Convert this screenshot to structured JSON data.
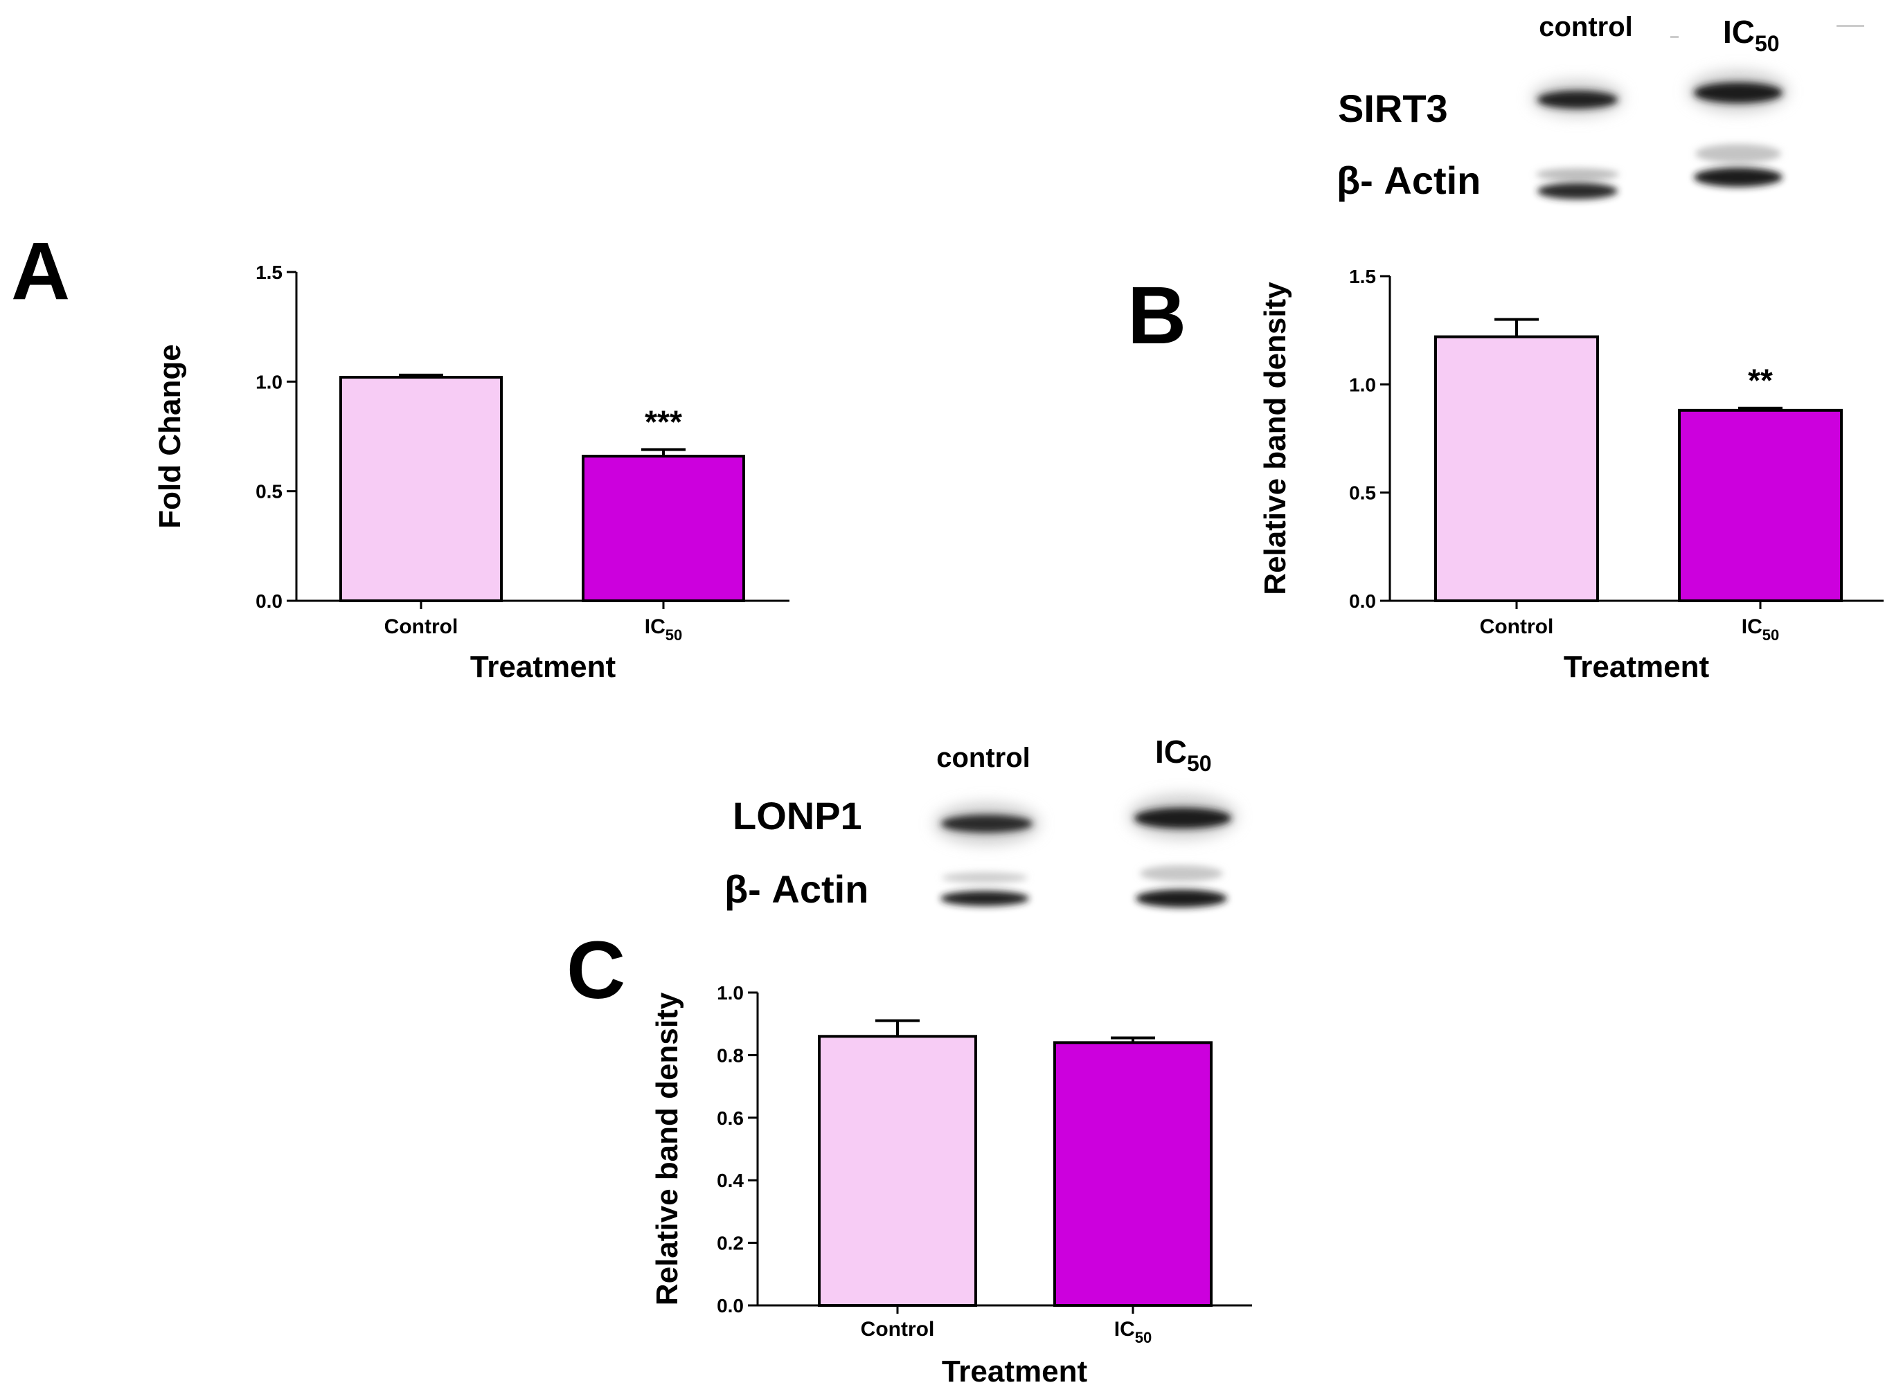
{
  "chart_data": [
    {
      "panel": "A",
      "type": "bar",
      "categories": [
        "Control",
        "IC"
      ],
      "category_subscripts": [
        "",
        "50"
      ],
      "values": [
        1.02,
        0.66
      ],
      "errors": [
        0.01,
        0.03
      ],
      "significance": [
        "",
        "***"
      ],
      "colors": [
        "#f7ccf5",
        "#cc00dd"
      ],
      "xlabel": "Treatment",
      "ylabel": "Fold Change",
      "ylim": [
        0,
        1.5
      ],
      "yticks": [
        0.0,
        0.5,
        1.0,
        1.5
      ],
      "ytick_labels": [
        "0.0",
        "0.5",
        "1.0",
        "1.5"
      ]
    },
    {
      "panel": "B",
      "type": "bar",
      "categories": [
        "Control",
        "IC"
      ],
      "category_subscripts": [
        "",
        "50"
      ],
      "values": [
        1.22,
        0.88
      ],
      "errors": [
        0.08,
        0.01
      ],
      "significance": [
        "",
        "**"
      ],
      "colors": [
        "#f7ccf5",
        "#cc00dd"
      ],
      "xlabel": "Treatment",
      "ylabel": "Relative band density",
      "ylim": [
        0,
        1.5
      ],
      "yticks": [
        0.0,
        0.5,
        1.0,
        1.5
      ],
      "ytick_labels": [
        "0.0",
        "0.5",
        "1.0",
        "1.5"
      ]
    },
    {
      "panel": "C",
      "type": "bar",
      "categories": [
        "Control",
        "IC"
      ],
      "category_subscripts": [
        "",
        "50"
      ],
      "values": [
        0.86,
        0.84
      ],
      "errors": [
        0.05,
        0.015
      ],
      "significance": [
        "",
        ""
      ],
      "colors": [
        "#f7ccf5",
        "#cc00dd"
      ],
      "xlabel": "Treatment",
      "ylabel": "Relative band density",
      "ylim": [
        0,
        1.0
      ],
      "yticks": [
        0.0,
        0.2,
        0.4,
        0.6,
        0.8,
        1.0
      ],
      "ytick_labels": [
        "0.0",
        "0.2",
        "0.4",
        "0.6",
        "0.8",
        "1.0"
      ]
    }
  ],
  "blots": [
    {
      "panel": "B",
      "lanes": [
        "control",
        "IC"
      ],
      "lane_subscripts": [
        "",
        "50"
      ],
      "proteins": [
        "SIRT3",
        "β- Actin"
      ]
    },
    {
      "panel": "C",
      "lanes": [
        "control",
        "IC"
      ],
      "lane_subscripts": [
        "",
        "50"
      ],
      "proteins": [
        "LONP1",
        "β- Actin"
      ]
    }
  ]
}
